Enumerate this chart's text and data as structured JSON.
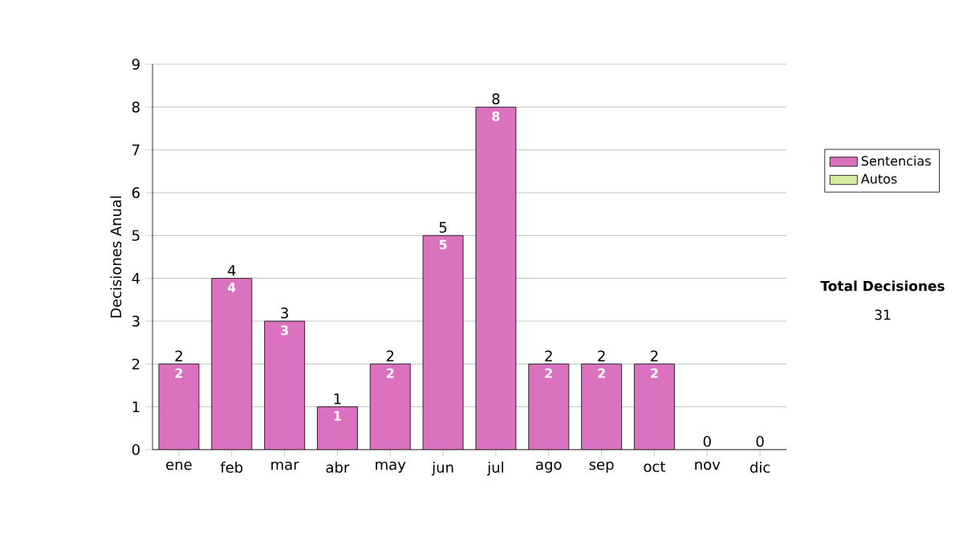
{
  "chart_data": {
    "type": "bar",
    "stacked": true,
    "ylabel": "Decisiones Anual",
    "categories": [
      "ene",
      "feb",
      "mar",
      "abr",
      "may",
      "jun",
      "jul",
      "ago",
      "sep",
      "oct",
      "nov",
      "dic"
    ],
    "series": [
      {
        "name": "Sentencias",
        "color": "#da72c0",
        "values": [
          2,
          4,
          3,
          1,
          2,
          5,
          8,
          2,
          2,
          2,
          0,
          0
        ],
        "value_labels": [
          "2",
          "4",
          "3",
          "1",
          "2",
          "5",
          "8",
          "2",
          "2",
          "2",
          null,
          null
        ]
      },
      {
        "name": "Autos",
        "color": "#d8eca0",
        "values": [
          0,
          0,
          0,
          0,
          0,
          0,
          0,
          0,
          0,
          0,
          0,
          0
        ]
      }
    ],
    "totals": [
      "2",
      "4",
      "3",
      "1",
      "2",
      "5",
      "8",
      "2",
      "2",
      "2",
      "0",
      "0"
    ],
    "ylim": [
      0,
      9
    ],
    "yticks": [
      0,
      1,
      2,
      3,
      4,
      5,
      6,
      7,
      8,
      9
    ],
    "grid": "y",
    "legend": "right",
    "annotations": [
      "Total Decisiones",
      "31"
    ]
  }
}
